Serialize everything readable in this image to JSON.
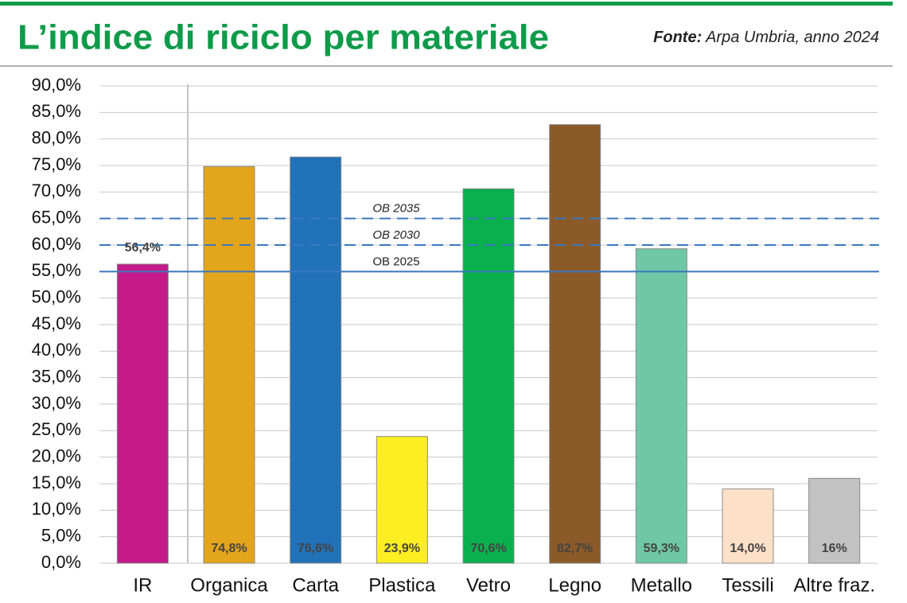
{
  "chart_data": {
    "type": "bar",
    "title": "L’indice di riciclo per materiale",
    "source_label": "Fonte:",
    "source": "Arpa Umbria, anno 2024",
    "categories": [
      "IR",
      "Organica",
      "Carta",
      "Plastica",
      "Vetro",
      "Legno",
      "Metallo",
      "Tessili",
      "Altre fraz."
    ],
    "values": [
      56.4,
      74.8,
      76.6,
      23.9,
      70.6,
      82.7,
      59.3,
      14.0,
      16
    ],
    "value_labels": [
      "56,4%",
      "74,8%",
      "76,6%",
      "23,9%",
      "70,6%",
      "82,7%",
      "59,3%",
      "14,0%",
      "16%"
    ],
    "colors": [
      "#c41a8a",
      "#e3a51c",
      "#2272b9",
      "#fdee21",
      "#0aaf4e",
      "#8b5a28",
      "#6fc7a6",
      "#fde0c8",
      "#c2c2c2"
    ],
    "ylim": [
      0,
      90
    ],
    "yticks": [
      {
        "value": 0,
        "label": "0,0%"
      },
      {
        "value": 5,
        "label": "5,0%"
      },
      {
        "value": 10,
        "label": "10,0%"
      },
      {
        "value": 15,
        "label": "15,0%"
      },
      {
        "value": 20,
        "label": "20,0%"
      },
      {
        "value": 25,
        "label": "25,0%"
      },
      {
        "value": 30,
        "label": "30,0%"
      },
      {
        "value": 35,
        "label": "35,0%"
      },
      {
        "value": 40,
        "label": "40,0%"
      },
      {
        "value": 45,
        "label": "45,0%"
      },
      {
        "value": 50,
        "label": "50,0%"
      },
      {
        "value": 55,
        "label": "55,0%"
      },
      {
        "value": 60,
        "label": "60,0%"
      },
      {
        "value": 65,
        "label": "65,0%"
      },
      {
        "value": 70,
        "label": "70,0%"
      },
      {
        "value": 75,
        "label": "75,0%"
      },
      {
        "value": 80,
        "label": "80,0%"
      },
      {
        "value": 85,
        "label": "85,0%"
      },
      {
        "value": 90,
        "label": "90,0%"
      }
    ],
    "grid": true,
    "reference_lines": [
      {
        "label": "OB 2035",
        "value": 65,
        "style": "dashed"
      },
      {
        "label": "OB 2030",
        "value": 60,
        "style": "dashed"
      },
      {
        "label": "OB 2025",
        "value": 55,
        "style": "solid"
      }
    ]
  }
}
